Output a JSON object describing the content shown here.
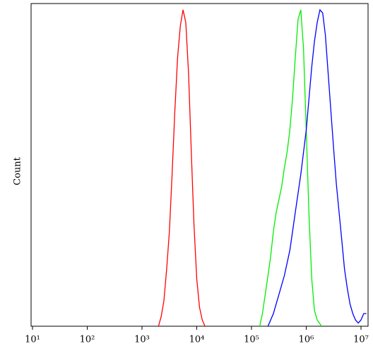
{
  "chart_data": {
    "type": "line",
    "xlabel": null,
    "ylabel": "Count",
    "xscale": "log",
    "xlim": [
      9.42,
      13460000
    ],
    "ylim": [
      0,
      102
    ],
    "xticks": [
      {
        "value": 10,
        "label": "10¹"
      },
      {
        "value": 100,
        "label": "10²"
      },
      {
        "value": 1000,
        "label": "10³"
      },
      {
        "value": 10000,
        "label": "10⁴"
      },
      {
        "value": 100000,
        "label": "10⁵"
      },
      {
        "value": 1000000,
        "label": "10⁶"
      },
      {
        "value": 10000000,
        "label": "10⁷"
      }
    ],
    "series": [
      {
        "color": "#ff0000",
        "x": [
          1995,
          2239,
          2512,
          2818,
          3162,
          3548,
          3981,
          4467,
          5012,
          5623,
          6310,
          7079,
          7943,
          8913,
          10000,
          11220,
          12589,
          14125
        ],
        "values": [
          0,
          3,
          8,
          18,
          30,
          48,
          68,
          85,
          95,
          100,
          96,
          80,
          55,
          32,
          15,
          6,
          2,
          0
        ]
      },
      {
        "color": "#00ee00",
        "x": [
          141254,
          158489,
          177828,
          199526,
          223872,
          251189,
          281838,
          316228,
          354813,
          398107,
          446684,
          501187,
          562341,
          630957,
          707946,
          794328,
          891251,
          1000000,
          1122018,
          1258925,
          1412538,
          1584893,
          1905461
        ],
        "values": [
          0,
          4,
          10,
          16,
          22,
          30,
          36,
          40,
          44,
          50,
          55,
          62,
          72,
          85,
          97,
          100,
          88,
          62,
          35,
          15,
          5,
          2,
          0
        ]
      },
      {
        "color": "#0000ff",
        "x": [
          199526,
          251189,
          316228,
          398107,
          501187,
          630957,
          794328,
          1000000,
          1122018,
          1258925,
          1412538,
          1584893,
          1778279,
          1995262,
          2238721,
          2511886,
          2818383,
          3162278,
          3548134,
          3981072,
          4466836,
          5011872,
          5623413,
          6309573,
          7079458,
          7943282,
          8912509,
          10000000,
          11220185,
          12589254
        ],
        "values": [
          0,
          4,
          10,
          16,
          24,
          36,
          48,
          62,
          72,
          82,
          90,
          96,
          100,
          99,
          92,
          80,
          68,
          56,
          45,
          36,
          27,
          18,
          12,
          7,
          4,
          2,
          1,
          2,
          4,
          4
        ]
      }
    ]
  }
}
